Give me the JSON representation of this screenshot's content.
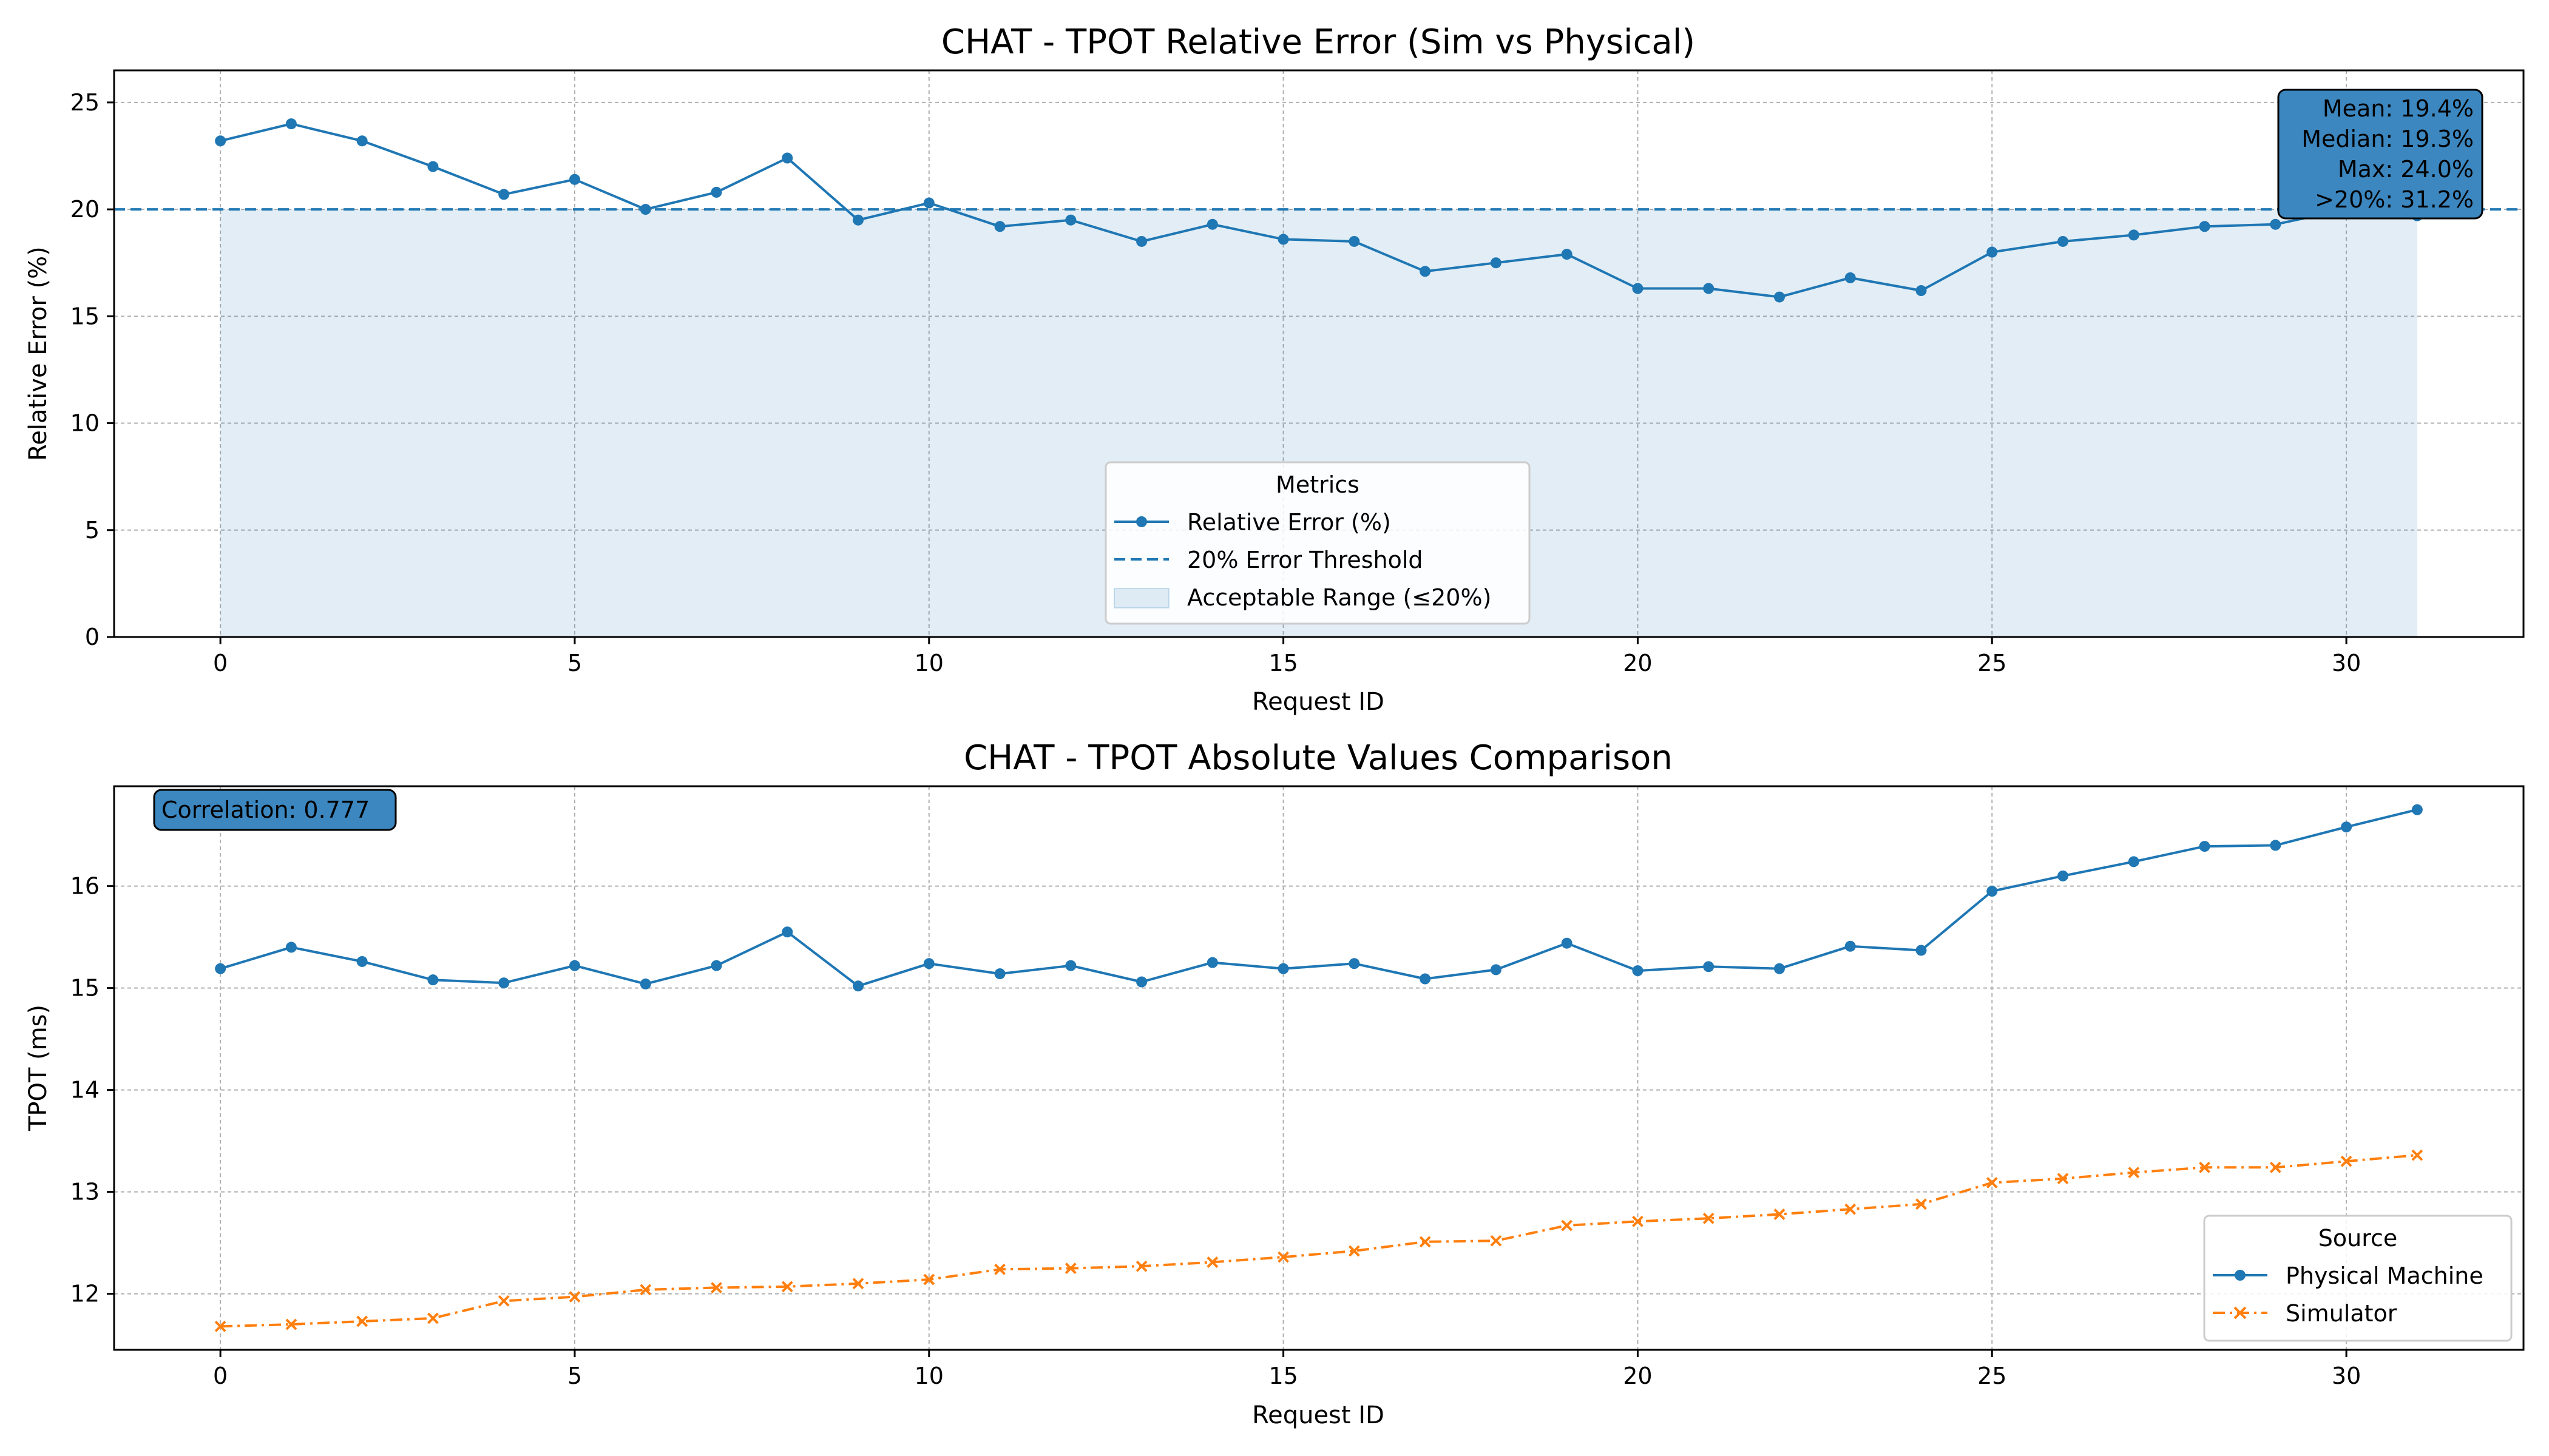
{
  "chart_data": [
    {
      "type": "line",
      "title": "CHAT - TPOT Relative Error (Sim vs Physical)",
      "xlabel": "Request ID",
      "ylabel": "Relative Error (%)",
      "xlim": [
        -1.5,
        32.5
      ],
      "ylim": [
        0,
        26.5
      ],
      "xticks": [
        0,
        5,
        10,
        15,
        20,
        25,
        30
      ],
      "yticks": [
        0,
        5,
        10,
        15,
        20,
        25
      ],
      "grid": true,
      "x": [
        0,
        1,
        2,
        3,
        4,
        5,
        6,
        7,
        8,
        9,
        10,
        11,
        12,
        13,
        14,
        15,
        16,
        17,
        18,
        19,
        20,
        21,
        22,
        23,
        24,
        25,
        26,
        27,
        28,
        29,
        30,
        31
      ],
      "series": [
        {
          "name": "Relative Error (%)",
          "color": "#1f77b4",
          "marker": "circle",
          "values": [
            23.2,
            24.0,
            23.2,
            22.0,
            20.7,
            21.4,
            20.0,
            20.8,
            22.4,
            19.5,
            20.3,
            19.2,
            19.5,
            18.5,
            19.3,
            18.6,
            18.5,
            17.1,
            17.5,
            17.9,
            16.3,
            16.3,
            15.9,
            16.8,
            16.2,
            18.0,
            18.5,
            18.8,
            19.2,
            19.3,
            20.0,
            19.7
          ]
        }
      ],
      "threshold": {
        "name": "20% Error Threshold",
        "value": 20,
        "color": "#1f77b4"
      },
      "band": {
        "name": "Acceptable Range (≤20%)",
        "from": 0,
        "to": 20,
        "x_start": 0,
        "x_end": 31,
        "color": "#1f77b4"
      },
      "legend": {
        "title": "Metrics",
        "position": "lower-center"
      },
      "stats_box": {
        "position": "top-right",
        "color": "#3c87c0",
        "lines": [
          "Mean: 19.4%",
          "Median: 19.3%",
          "Max: 24.0%",
          ">20%: 31.2%"
        ]
      }
    },
    {
      "type": "line",
      "title": "CHAT - TPOT Absolute Values Comparison",
      "xlabel": "Request ID",
      "ylabel": "TPOT (ms)",
      "xlim": [
        -1.5,
        32.5
      ],
      "ylim": [
        11.45,
        16.98
      ],
      "xticks": [
        0,
        5,
        10,
        15,
        20,
        25,
        30
      ],
      "yticks": [
        12,
        13,
        14,
        15,
        16
      ],
      "grid": true,
      "x": [
        0,
        1,
        2,
        3,
        4,
        5,
        6,
        7,
        8,
        9,
        10,
        11,
        12,
        13,
        14,
        15,
        16,
        17,
        18,
        19,
        20,
        21,
        22,
        23,
        24,
        25,
        26,
        27,
        28,
        29,
        30,
        31
      ],
      "series": [
        {
          "name": "Physical Machine",
          "color": "#1f77b4",
          "marker": "circle",
          "line_style": "solid",
          "values": [
            15.19,
            15.4,
            15.26,
            15.08,
            15.05,
            15.22,
            15.04,
            15.22,
            15.55,
            15.02,
            15.24,
            15.14,
            15.22,
            15.06,
            15.25,
            15.19,
            15.24,
            15.09,
            15.18,
            15.44,
            15.17,
            15.21,
            15.19,
            15.41,
            15.37,
            15.95,
            16.1,
            16.24,
            16.39,
            16.4,
            16.58,
            16.75
          ]
        },
        {
          "name": "Simulator",
          "color": "#ff7f0e",
          "marker": "x",
          "line_style": "dashdot",
          "values": [
            11.68,
            11.7,
            11.73,
            11.76,
            11.93,
            11.97,
            12.04,
            12.06,
            12.07,
            12.1,
            12.14,
            12.24,
            12.25,
            12.27,
            12.31,
            12.36,
            12.42,
            12.51,
            12.52,
            12.67,
            12.71,
            12.74,
            12.78,
            12.83,
            12.88,
            13.09,
            13.13,
            13.19,
            13.24,
            13.24,
            13.3,
            13.36
          ]
        }
      ],
      "legend": {
        "title": "Source",
        "position": "lower-right"
      },
      "stats_box": {
        "position": "top-left",
        "color": "#3c87c0",
        "lines": [
          "Correlation: 0.777"
        ]
      }
    }
  ]
}
